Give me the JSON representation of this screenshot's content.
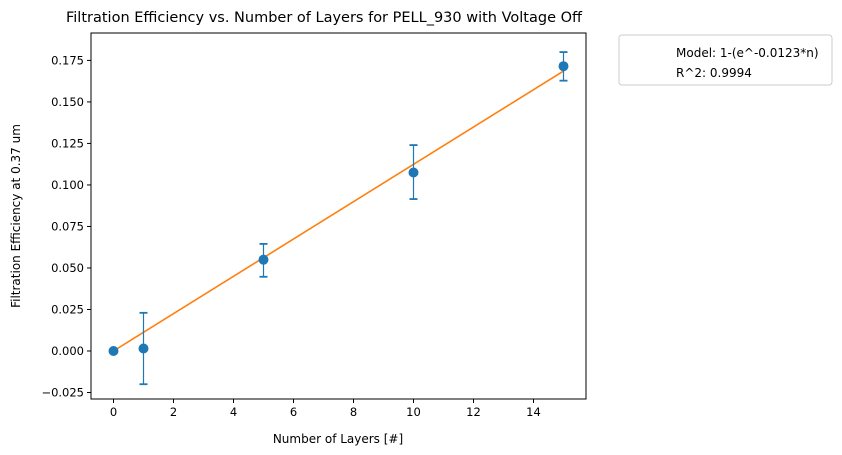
{
  "chart_data": {
    "type": "scatter",
    "title": "Filtration Efficiency vs. Number of Layers for PELL_930 with Voltage Off",
    "xlabel": "Number of Layers [#]",
    "ylabel": "Filtration Efficiency at 0.37 um",
    "xlim": [
      -0.75,
      15.75
    ],
    "ylim": [
      -0.0289,
      0.1915
    ],
    "x_ticks": [
      0,
      2,
      4,
      6,
      8,
      10,
      12,
      14
    ],
    "y_ticks": [
      -0.025,
      0.0,
      0.025,
      0.05,
      0.075,
      0.1,
      0.125,
      0.15,
      0.175
    ],
    "x_tick_labels": [
      "0",
      "2",
      "4",
      "6",
      "8",
      "10",
      "12",
      "14"
    ],
    "y_tick_labels": [
      "−0.025",
      "0.000",
      "0.025",
      "0.050",
      "0.075",
      "0.100",
      "0.125",
      "0.150",
      "0.175"
    ],
    "grid": false,
    "legend_position": "outside-right-top",
    "colors": {
      "points": "#1f77b4",
      "fit": "#ff7f0e"
    },
    "series": [
      {
        "kind": "points_with_error",
        "x": [
          0,
          1,
          5,
          10,
          15
        ],
        "y": [
          0.0,
          0.0015,
          0.055,
          0.1075,
          0.1715
        ],
        "yerr_low": [
          0.0,
          0.0215,
          0.0103,
          0.016,
          0.0087
        ],
        "yerr_high": [
          0.0,
          0.0215,
          0.0095,
          0.0165,
          0.0085
        ]
      },
      {
        "kind": "fit_line",
        "model": "1-(e^-0.0123*n)",
        "x": [
          0,
          15
        ],
        "y": [
          0.0,
          0.1686
        ]
      }
    ],
    "legend": [
      {
        "label": "Model: 1-(e^-0.0123*n)"
      },
      {
        "label": "R^2: 0.9994"
      }
    ]
  }
}
